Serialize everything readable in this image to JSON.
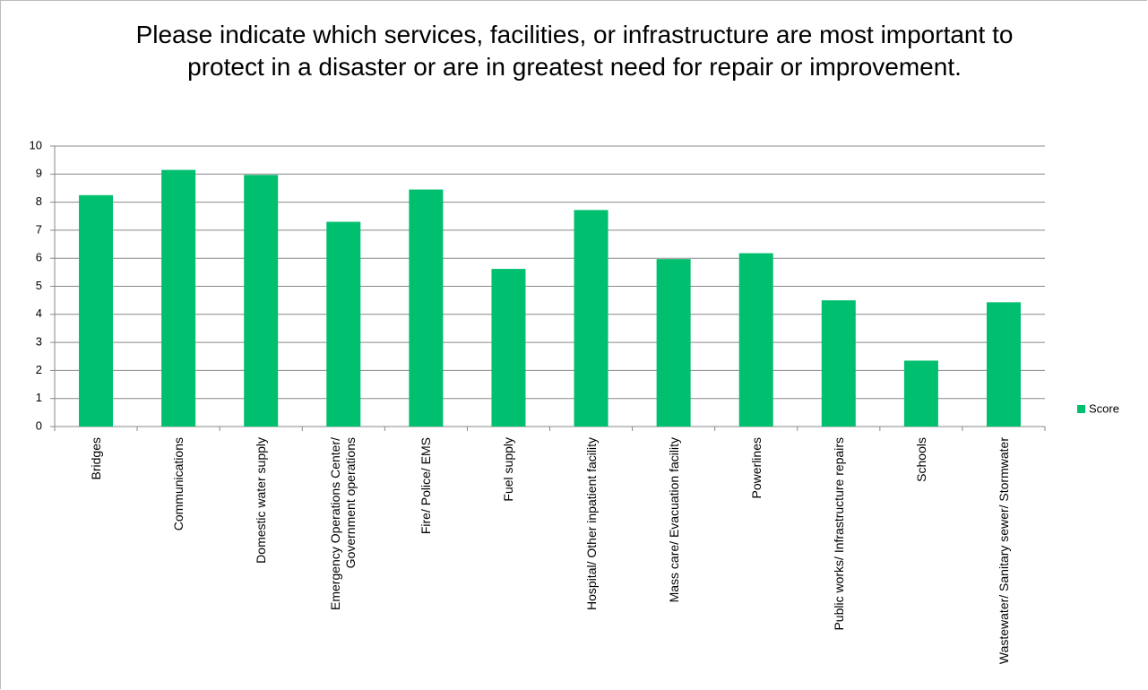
{
  "chart_data": {
    "type": "bar",
    "title": "Please indicate which services, facilities, or infrastructure are most important to protect in a disaster or are in greatest need for repair or improvement.",
    "categories": [
      "Bridges",
      "Communications",
      "Domestic water supply",
      "Emergency Operations Center/ Government operations",
      "Fire/ Police/ EMS",
      "Fuel supply",
      "Hospital/ Other inpatient facility",
      "Mass care/ Evacuation facility",
      "Powerlines",
      "Public works/ Infrastructure repairs",
      "Schools",
      "Wastewater/ Sanitary sewer/ Stormwater"
    ],
    "series": [
      {
        "name": "Score",
        "color": "#00bf6f",
        "values": [
          8.25,
          9.15,
          8.97,
          7.3,
          8.45,
          5.62,
          7.72,
          5.97,
          6.18,
          4.5,
          2.35,
          4.43
        ]
      }
    ],
    "ylim": [
      0,
      10
    ],
    "yticks": [
      0,
      1,
      2,
      3,
      4,
      5,
      6,
      7,
      8,
      9,
      10
    ],
    "grid": true,
    "legend": "right"
  }
}
